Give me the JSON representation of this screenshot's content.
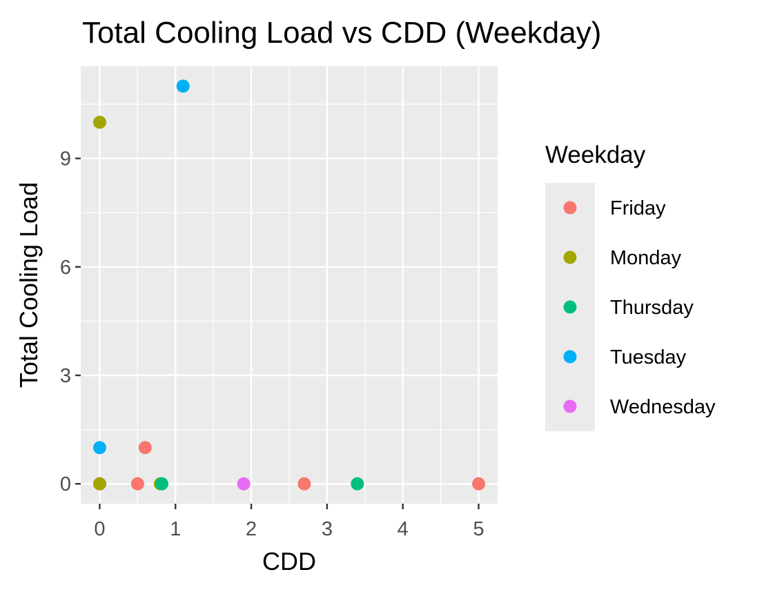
{
  "chart_data": {
    "type": "scatter",
    "title": "Total Cooling Load vs CDD (Weekday)",
    "xlabel": "CDD",
    "ylabel": "Total Cooling Load",
    "xlim": [
      -0.25,
      5.25
    ],
    "ylim": [
      -0.55,
      11.55
    ],
    "x_ticks": [
      0,
      1,
      2,
      3,
      4,
      5
    ],
    "y_ticks": [
      0,
      3,
      6,
      9
    ],
    "grid": true,
    "legend": {
      "title": "Weekday",
      "position": "right"
    },
    "series": [
      {
        "name": "Friday",
        "color": "#F8766D",
        "points": [
          [
            0,
            0
          ],
          [
            0.5,
            0
          ],
          [
            0.6,
            1
          ],
          [
            2.7,
            0
          ],
          [
            5.0,
            0
          ]
        ]
      },
      {
        "name": "Monday",
        "color": "#A3A500",
        "points": [
          [
            0,
            10
          ],
          [
            0,
            0
          ],
          [
            0.8,
            0
          ]
        ]
      },
      {
        "name": "Thursday",
        "color": "#00BF7D",
        "points": [
          [
            0.82,
            0
          ],
          [
            3.4,
            0
          ]
        ]
      },
      {
        "name": "Tuesday",
        "color": "#00B0F6",
        "points": [
          [
            1.1,
            11
          ],
          [
            0,
            1
          ]
        ]
      },
      {
        "name": "Wednesday",
        "color": "#E76BF3",
        "points": [
          [
            1.9,
            0
          ]
        ]
      }
    ]
  }
}
